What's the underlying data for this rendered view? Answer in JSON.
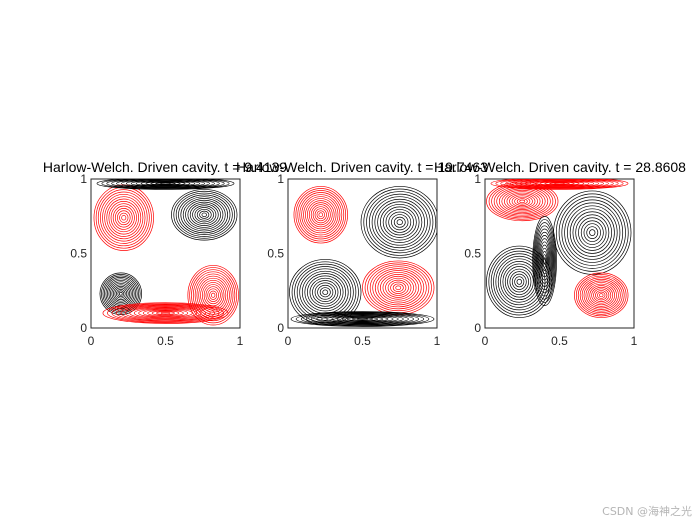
{
  "colors": {
    "positive": "#000000",
    "negative": "#ff0000",
    "axis": "#262626"
  },
  "watermark": "CSDN @海神之光",
  "chart_data": [
    {
      "type": "contour",
      "title": "Harlow-Welch. Driven cavity. t = 9.4139",
      "xlim": [
        0,
        1
      ],
      "ylim": [
        0,
        1
      ],
      "xticks": [
        "0",
        "0.5",
        "1"
      ],
      "yticks": [
        "0",
        "0.5",
        "1"
      ],
      "vortices": [
        {
          "x": 0.76,
          "y": 0.76,
          "sign": "positive",
          "rx": 0.22,
          "ry": 0.17
        },
        {
          "x": 0.2,
          "y": 0.23,
          "sign": "positive",
          "rx": 0.14,
          "ry": 0.14
        },
        {
          "x": 0.22,
          "y": 0.74,
          "sign": "negative",
          "rx": 0.2,
          "ry": 0.22
        },
        {
          "x": 0.82,
          "y": 0.22,
          "sign": "negative",
          "rx": 0.17,
          "ry": 0.2
        },
        {
          "x": 0.5,
          "y": 0.97,
          "sign": "positive",
          "rx": 0.46,
          "ry": 0.04
        },
        {
          "x": 0.5,
          "y": 0.1,
          "sign": "negative",
          "rx": 0.42,
          "ry": 0.07
        }
      ]
    },
    {
      "type": "contour",
      "title": "Harlow-Welch. Driven cavity. t = 19.7463",
      "xlim": [
        0,
        1
      ],
      "ylim": [
        0,
        1
      ],
      "xticks": [
        "0",
        "0.5",
        "1"
      ],
      "yticks": [
        "0",
        "0.5",
        "1"
      ],
      "vortices": [
        {
          "x": 0.22,
          "y": 0.76,
          "sign": "negative",
          "rx": 0.18,
          "ry": 0.19
        },
        {
          "x": 0.75,
          "y": 0.71,
          "sign": "positive",
          "rx": 0.26,
          "ry": 0.24
        },
        {
          "x": 0.25,
          "y": 0.24,
          "sign": "positive",
          "rx": 0.24,
          "ry": 0.22
        },
        {
          "x": 0.74,
          "y": 0.27,
          "sign": "negative",
          "rx": 0.24,
          "ry": 0.18
        },
        {
          "x": 0.5,
          "y": 0.06,
          "sign": "positive",
          "rx": 0.48,
          "ry": 0.05
        }
      ]
    },
    {
      "type": "contour",
      "title": "Harlow-Welch. Driven cavity. t = 28.8608",
      "xlim": [
        0,
        1
      ],
      "ylim": [
        0,
        1
      ],
      "xticks": [
        "0",
        "0.5",
        "1"
      ],
      "yticks": [
        "0",
        "0.5",
        "1"
      ],
      "vortices": [
        {
          "x": 0.25,
          "y": 0.85,
          "sign": "negative",
          "rx": 0.24,
          "ry": 0.13
        },
        {
          "x": 0.72,
          "y": 0.64,
          "sign": "positive",
          "rx": 0.26,
          "ry": 0.28
        },
        {
          "x": 0.23,
          "y": 0.31,
          "sign": "positive",
          "rx": 0.22,
          "ry": 0.24
        },
        {
          "x": 0.78,
          "y": 0.22,
          "sign": "negative",
          "rx": 0.18,
          "ry": 0.15
        },
        {
          "x": 0.5,
          "y": 0.97,
          "sign": "negative",
          "rx": 0.46,
          "ry": 0.04
        },
        {
          "x": 0.4,
          "y": 0.45,
          "sign": "positive",
          "rx": 0.08,
          "ry": 0.3
        }
      ]
    }
  ]
}
